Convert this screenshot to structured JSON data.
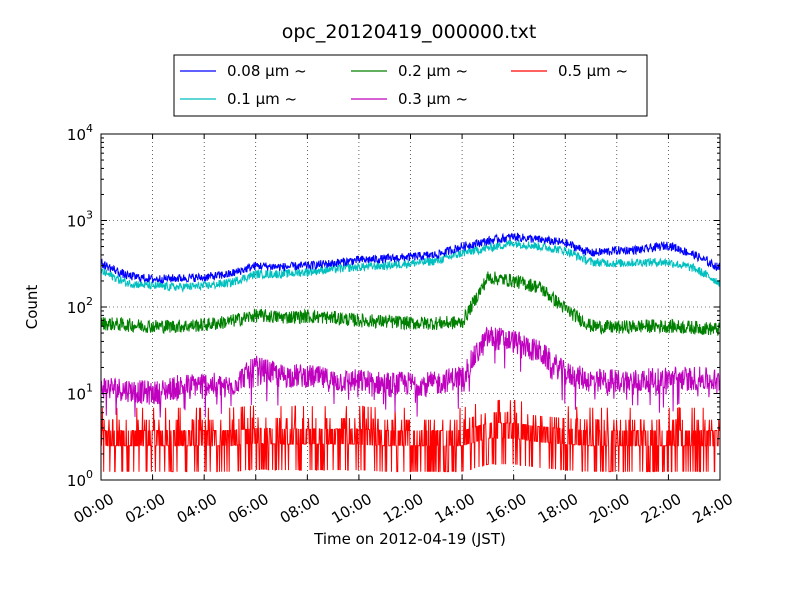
{
  "chart_data": {
    "type": "line",
    "title": "opc_20120419_000000.txt",
    "xlabel": "Time on 2012-04-19 (JST)",
    "ylabel": "Count",
    "yscale": "log",
    "ylim": [
      1,
      10000
    ],
    "xlim": [
      "00:00",
      "24:00"
    ],
    "x_ticks": [
      "00:00",
      "02:00",
      "04:00",
      "06:00",
      "08:00",
      "10:00",
      "12:00",
      "14:00",
      "16:00",
      "18:00",
      "20:00",
      "22:00",
      "24:00"
    ],
    "y_ticks": [
      {
        "value": 1,
        "base": "10",
        "exp": "0"
      },
      {
        "value": 10,
        "base": "10",
        "exp": "1"
      },
      {
        "value": 100,
        "base": "10",
        "exp": "2"
      },
      {
        "value": 1000,
        "base": "10",
        "exp": "3"
      },
      {
        "value": 10000,
        "base": "10",
        "exp": "4"
      }
    ],
    "grid": true,
    "legend_position": "top-center",
    "hours": [
      0,
      1,
      2,
      3,
      4,
      5,
      6,
      7,
      8,
      9,
      10,
      11,
      12,
      13,
      14,
      15,
      16,
      17,
      18,
      19,
      20,
      21,
      22,
      23,
      24
    ],
    "series": [
      {
        "name": "0.08 μm ~",
        "color": "#0000ff",
        "values": [
          320,
          230,
          210,
          215,
          220,
          240,
          300,
          290,
          300,
          320,
          350,
          360,
          380,
          400,
          500,
          580,
          650,
          600,
          550,
          420,
          450,
          460,
          520,
          400,
          280
        ]
      },
      {
        "name": "0.1 μm ~",
        "color": "#00bfbf",
        "values": [
          260,
          190,
          175,
          170,
          175,
          190,
          240,
          240,
          255,
          275,
          290,
          300,
          320,
          340,
          420,
          480,
          550,
          500,
          450,
          330,
          320,
          330,
          330,
          280,
          190
        ]
      },
      {
        "name": "0.2 μm ~",
        "color": "#008000",
        "values": [
          65,
          62,
          60,
          60,
          62,
          68,
          80,
          76,
          78,
          75,
          70,
          68,
          65,
          65,
          66,
          220,
          200,
          170,
          95,
          60,
          58,
          60,
          60,
          58,
          55
        ]
      },
      {
        "name": "0.3 μm ~",
        "color": "#bf00bf",
        "values": [
          12,
          11,
          10,
          12,
          13,
          12,
          20,
          16,
          16,
          14,
          14,
          13,
          13,
          13,
          16,
          45,
          40,
          30,
          17,
          14,
          14,
          14,
          15,
          15,
          14
        ]
      },
      {
        "name": "0.5 μm ~",
        "color": "#ff0000",
        "values": [
          2,
          2,
          2,
          2,
          2,
          2,
          2.3,
          2.2,
          2.2,
          2.2,
          2.2,
          2,
          2,
          2,
          2,
          3,
          3,
          2.5,
          2.2,
          2,
          2,
          2,
          2,
          2,
          2
        ]
      }
    ]
  }
}
